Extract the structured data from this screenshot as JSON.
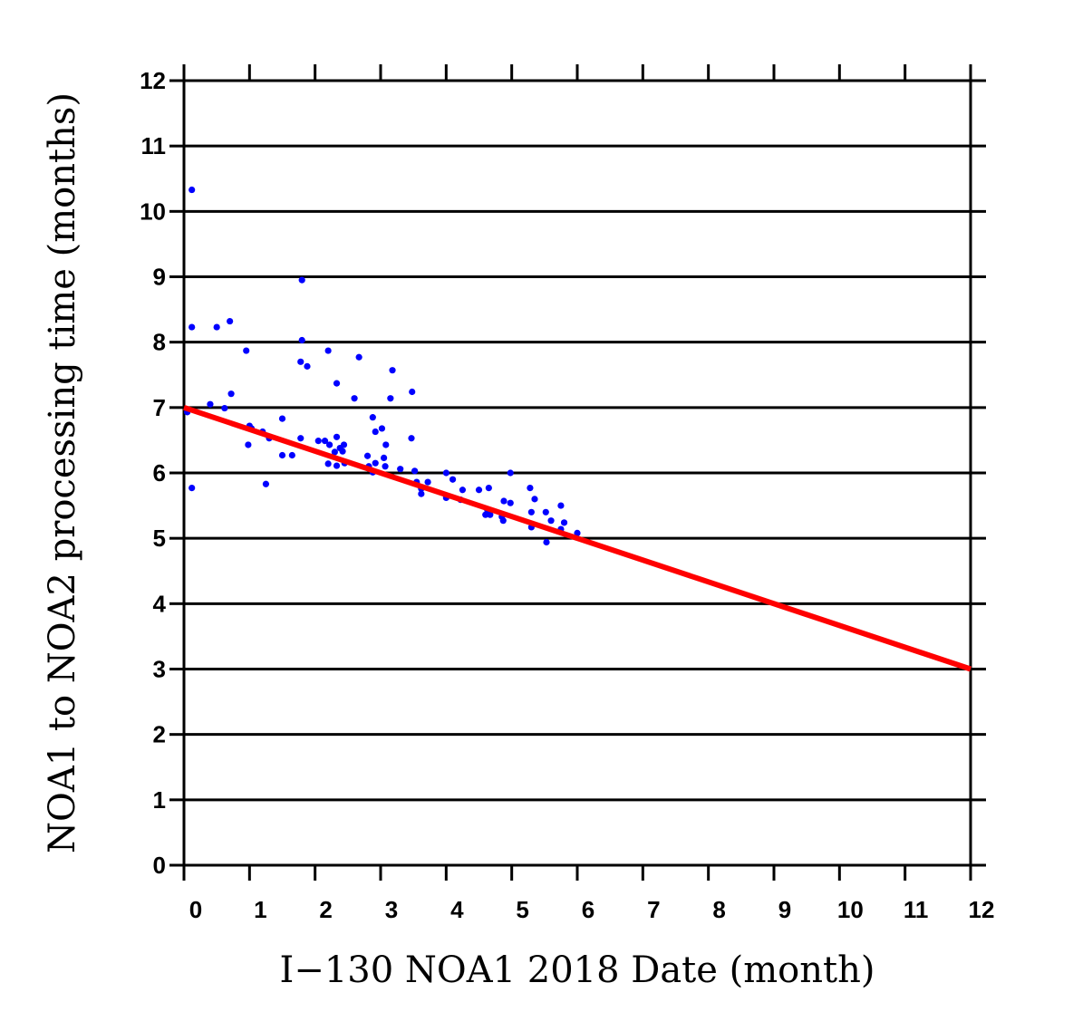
{
  "chart_data": {
    "type": "scatter",
    "title": "",
    "xlabel": "I−130 NOA1 2018 Date (month)",
    "ylabel": "NOA1 to NOA2 processing time (months)",
    "xlim": [
      0,
      12
    ],
    "ylim": [
      0,
      12
    ],
    "xticks": [
      "0",
      "1",
      "2",
      "3",
      "4",
      "5",
      "6",
      "7",
      "8",
      "9",
      "10",
      "11",
      "12"
    ],
    "yticks": [
      "0",
      "1",
      "2",
      "3",
      "4",
      "5",
      "6",
      "7",
      "8",
      "9",
      "10",
      "11",
      "12"
    ],
    "grid": "horizontal",
    "colors": {
      "points": "#0000ff",
      "trend": "#ff0000",
      "grid": "#000000"
    },
    "series": [
      {
        "kind": "scatter",
        "points": [
          [
            0.12,
            10.33
          ],
          [
            0.12,
            8.23
          ],
          [
            0.5,
            8.23
          ],
          [
            0.7,
            8.32
          ],
          [
            0.95,
            7.87
          ],
          [
            0.72,
            7.21
          ],
          [
            0.4,
            7.05
          ],
          [
            0.62,
            6.99
          ],
          [
            0.05,
            6.93
          ],
          [
            1.0,
            6.72
          ],
          [
            1.03,
            6.68
          ],
          [
            0.98,
            6.43
          ],
          [
            1.2,
            6.63
          ],
          [
            1.3,
            6.53
          ],
          [
            1.5,
            6.83
          ],
          [
            1.5,
            6.27
          ],
          [
            1.65,
            6.27
          ],
          [
            1.25,
            5.83
          ],
          [
            0.12,
            5.77
          ],
          [
            1.8,
            8.95
          ],
          [
            1.8,
            8.03
          ],
          [
            1.78,
            7.7
          ],
          [
            1.88,
            7.63
          ],
          [
            2.2,
            7.87
          ],
          [
            2.67,
            7.77
          ],
          [
            2.33,
            7.37
          ],
          [
            2.6,
            7.14
          ],
          [
            1.78,
            6.53
          ],
          [
            2.05,
            6.49
          ],
          [
            2.15,
            6.49
          ],
          [
            2.22,
            6.43
          ],
          [
            2.33,
            6.55
          ],
          [
            2.38,
            6.38
          ],
          [
            2.44,
            6.43
          ],
          [
            2.3,
            6.32
          ],
          [
            2.42,
            6.33
          ],
          [
            2.2,
            6.14
          ],
          [
            2.33,
            6.11
          ],
          [
            2.45,
            6.15
          ],
          [
            2.8,
            6.26
          ],
          [
            2.82,
            6.1
          ],
          [
            2.92,
            6.15
          ],
          [
            2.88,
            6.01
          ],
          [
            2.92,
            6.63
          ],
          [
            2.88,
            6.85
          ],
          [
            3.02,
            6.68
          ],
          [
            3.08,
            6.43
          ],
          [
            3.05,
            6.23
          ],
          [
            3.07,
            6.1
          ],
          [
            3.18,
            7.57
          ],
          [
            3.15,
            7.14
          ],
          [
            3.48,
            7.24
          ],
          [
            3.47,
            6.53
          ],
          [
            3.3,
            6.06
          ],
          [
            3.52,
            6.03
          ],
          [
            3.55,
            5.86
          ],
          [
            3.62,
            5.76
          ],
          [
            3.62,
            5.68
          ],
          [
            3.72,
            5.86
          ],
          [
            4.0,
            6.0
          ],
          [
            4.1,
            5.9
          ],
          [
            4.25,
            5.74
          ],
          [
            4.0,
            5.62
          ],
          [
            4.22,
            5.59
          ],
          [
            4.5,
            5.74
          ],
          [
            4.65,
            5.77
          ],
          [
            4.63,
            5.43
          ],
          [
            4.6,
            5.36
          ],
          [
            4.67,
            5.36
          ],
          [
            4.88,
            5.57
          ],
          [
            4.98,
            5.54
          ],
          [
            4.98,
            6.0
          ],
          [
            4.85,
            5.33
          ],
          [
            4.87,
            5.27
          ],
          [
            5.28,
            5.77
          ],
          [
            5.35,
            5.6
          ],
          [
            5.3,
            5.4
          ],
          [
            5.52,
            5.4
          ],
          [
            5.6,
            5.27
          ],
          [
            5.75,
            5.5
          ],
          [
            5.8,
            5.24
          ],
          [
            5.75,
            5.14
          ],
          [
            5.3,
            5.17
          ],
          [
            5.53,
            4.94
          ],
          [
            6.0,
            5.08
          ]
        ]
      },
      {
        "kind": "line",
        "points": [
          [
            0,
            7.0
          ],
          [
            12,
            3.0
          ]
        ]
      }
    ]
  }
}
